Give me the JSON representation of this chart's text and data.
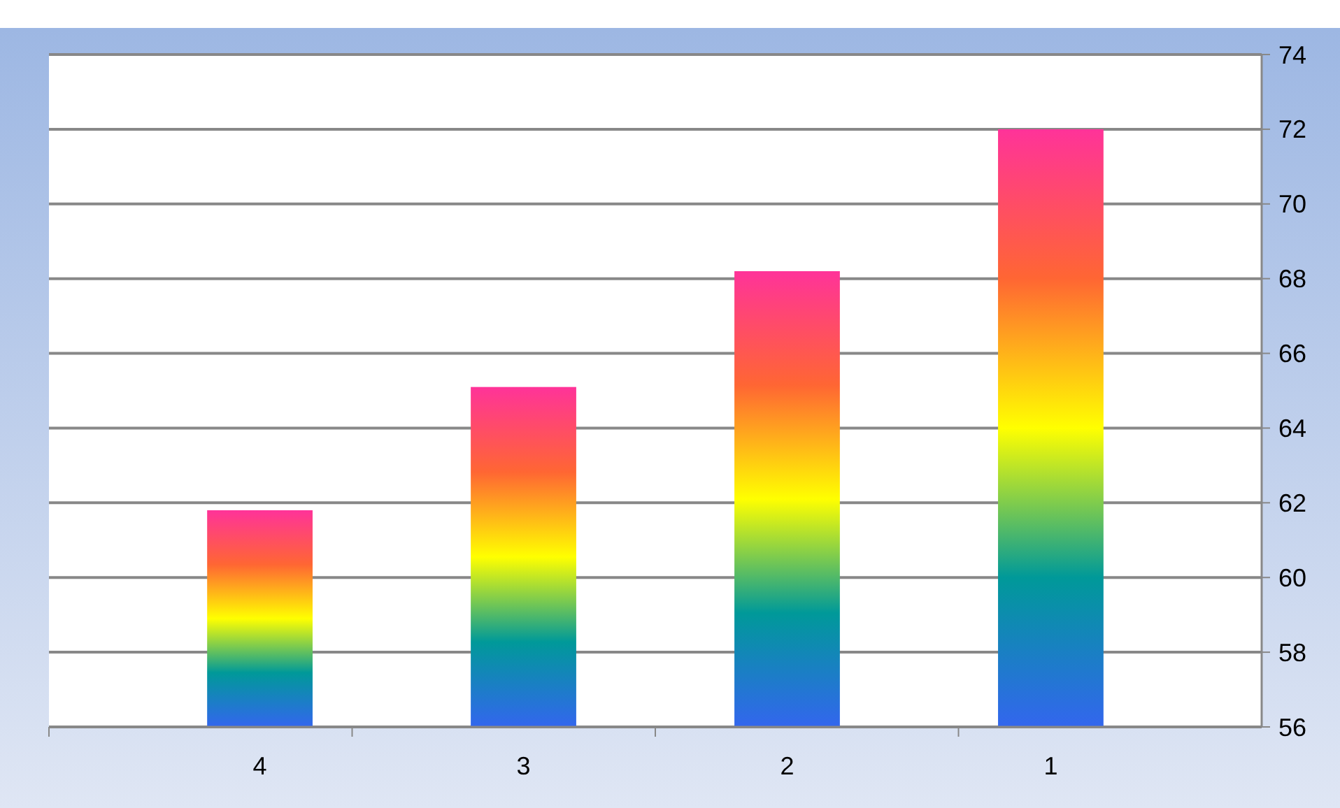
{
  "chart_data": {
    "type": "bar",
    "categories": [
      "4",
      "3",
      "2",
      "1"
    ],
    "values": [
      61.8,
      65.1,
      68.2,
      72
    ],
    "color": "#ff3399",
    "ylim": [
      56,
      74
    ],
    "yticks": [
      56,
      58,
      60,
      62,
      64,
      66,
      68,
      70,
      72,
      74
    ],
    "grid": "y"
  }
}
